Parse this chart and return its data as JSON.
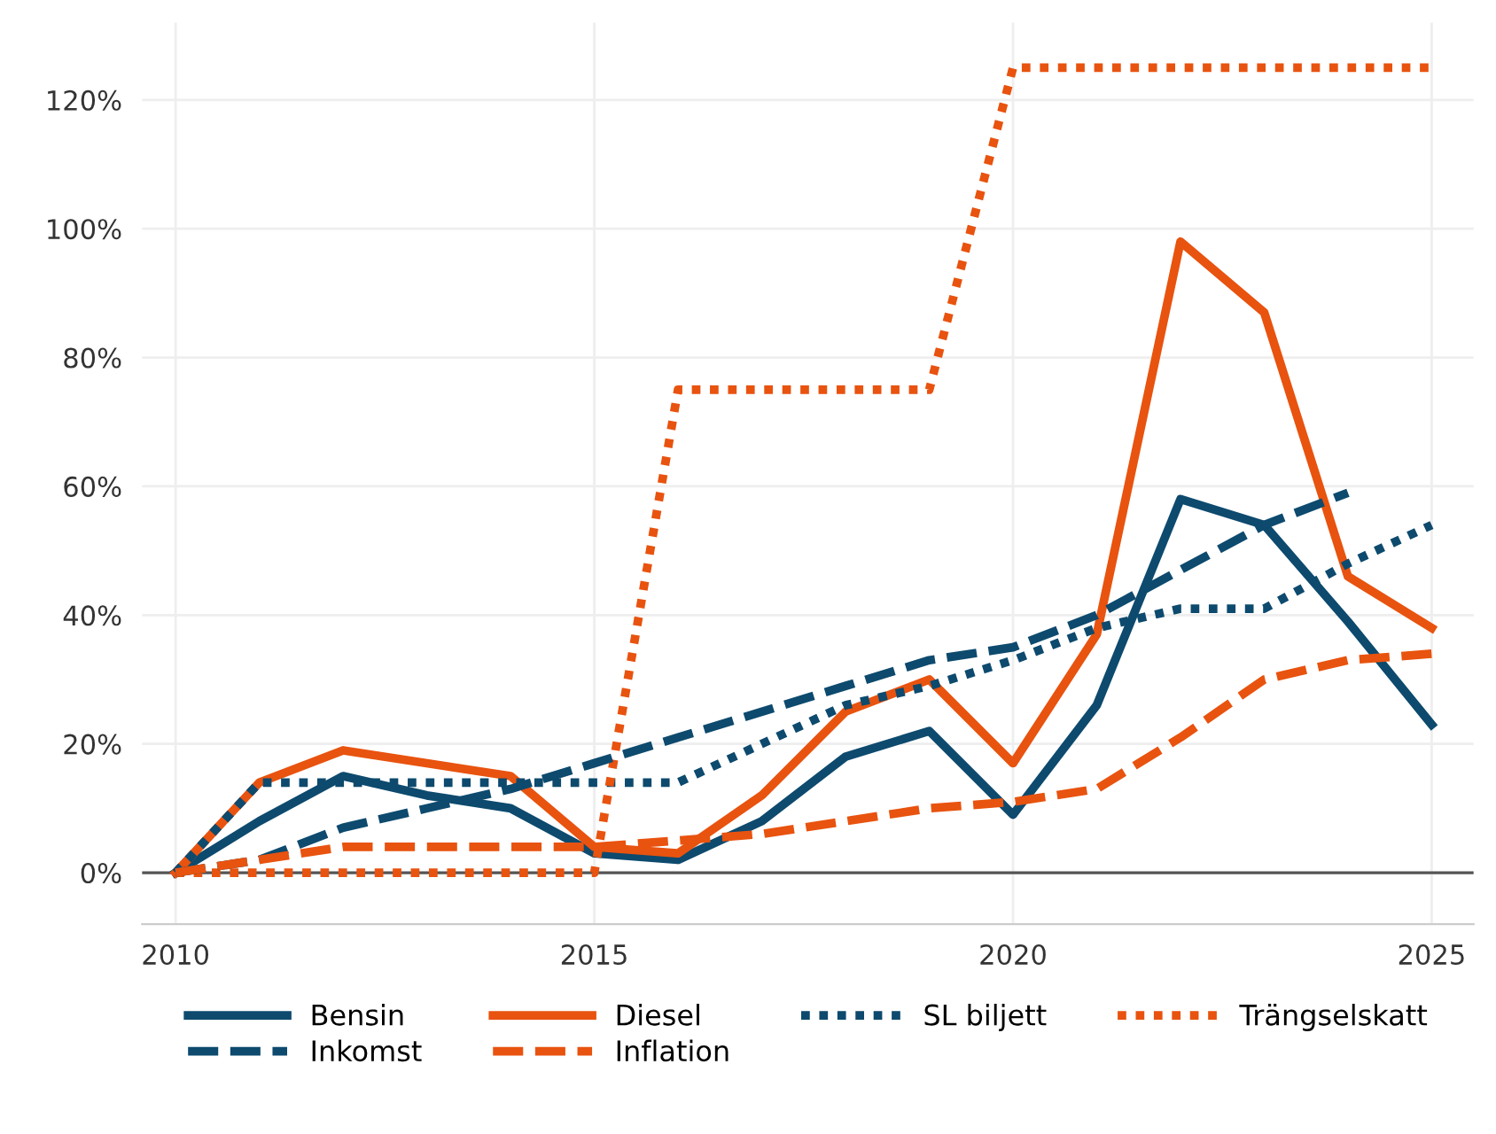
{
  "chart_data": {
    "type": "line",
    "x": [
      2010,
      2011,
      2012,
      2013,
      2014,
      2015,
      2016,
      2017,
      2018,
      2019,
      2020,
      2021,
      2022,
      2023,
      2024,
      2025
    ],
    "series": [
      {
        "name": "Bensin",
        "color": "#0d4a6e",
        "line_style": "solid",
        "values": [
          0,
          8,
          15,
          12,
          10,
          3,
          2,
          8,
          18,
          22,
          9,
          26,
          58,
          54,
          39,
          23
        ]
      },
      {
        "name": "Diesel",
        "color": "#e8530f",
        "line_style": "solid",
        "values": [
          0,
          14,
          19,
          17,
          15,
          4,
          3,
          12,
          25,
          30,
          17,
          37,
          98,
          87,
          46,
          38
        ]
      },
      {
        "name": "SL biljett",
        "color": "#0d4a6e",
        "line_style": "dotted",
        "values": [
          0,
          14,
          14,
          14,
          14,
          14,
          14,
          20,
          26,
          29,
          33,
          38,
          41,
          41,
          48,
          54
        ]
      },
      {
        "name": "Trängselskatt",
        "color": "#e8530f",
        "line_style": "dotted",
        "values": [
          0,
          0,
          0,
          0,
          0,
          0,
          75,
          75,
          75,
          75,
          125,
          125,
          125,
          125,
          125,
          125
        ]
      },
      {
        "name": "Inkomst",
        "color": "#0d4a6e",
        "line_style": "dashed",
        "values": [
          0,
          2,
          7,
          10,
          13,
          17,
          21,
          25,
          29,
          33,
          35,
          40,
          47,
          54,
          59,
          null
        ]
      },
      {
        "name": "Inflation",
        "color": "#e8530f",
        "line_style": "dashed",
        "values": [
          0,
          2,
          4,
          4,
          4,
          4,
          5,
          6,
          8,
          10,
          11,
          13,
          21,
          30,
          33,
          34
        ]
      }
    ],
    "xlim": [
      2009.6,
      2025.5
    ],
    "xticks": [
      2010,
      2015,
      2020,
      2025
    ],
    "ylim": [
      -8,
      132
    ],
    "yticks": [
      {
        "value": 0,
        "label": "0%"
      },
      {
        "value": 20,
        "label": "20%"
      },
      {
        "value": 40,
        "label": "40%"
      },
      {
        "value": 60,
        "label": "60%"
      },
      {
        "value": 80,
        "label": "80%"
      },
      {
        "value": 100,
        "label": "100%"
      },
      {
        "value": 120,
        "label": "120%"
      }
    ],
    "ref_lines": [
      {
        "axis": "y",
        "value": 0,
        "color": "#555555"
      }
    ],
    "grid": true,
    "legend": "bottom",
    "marker": "none"
  }
}
